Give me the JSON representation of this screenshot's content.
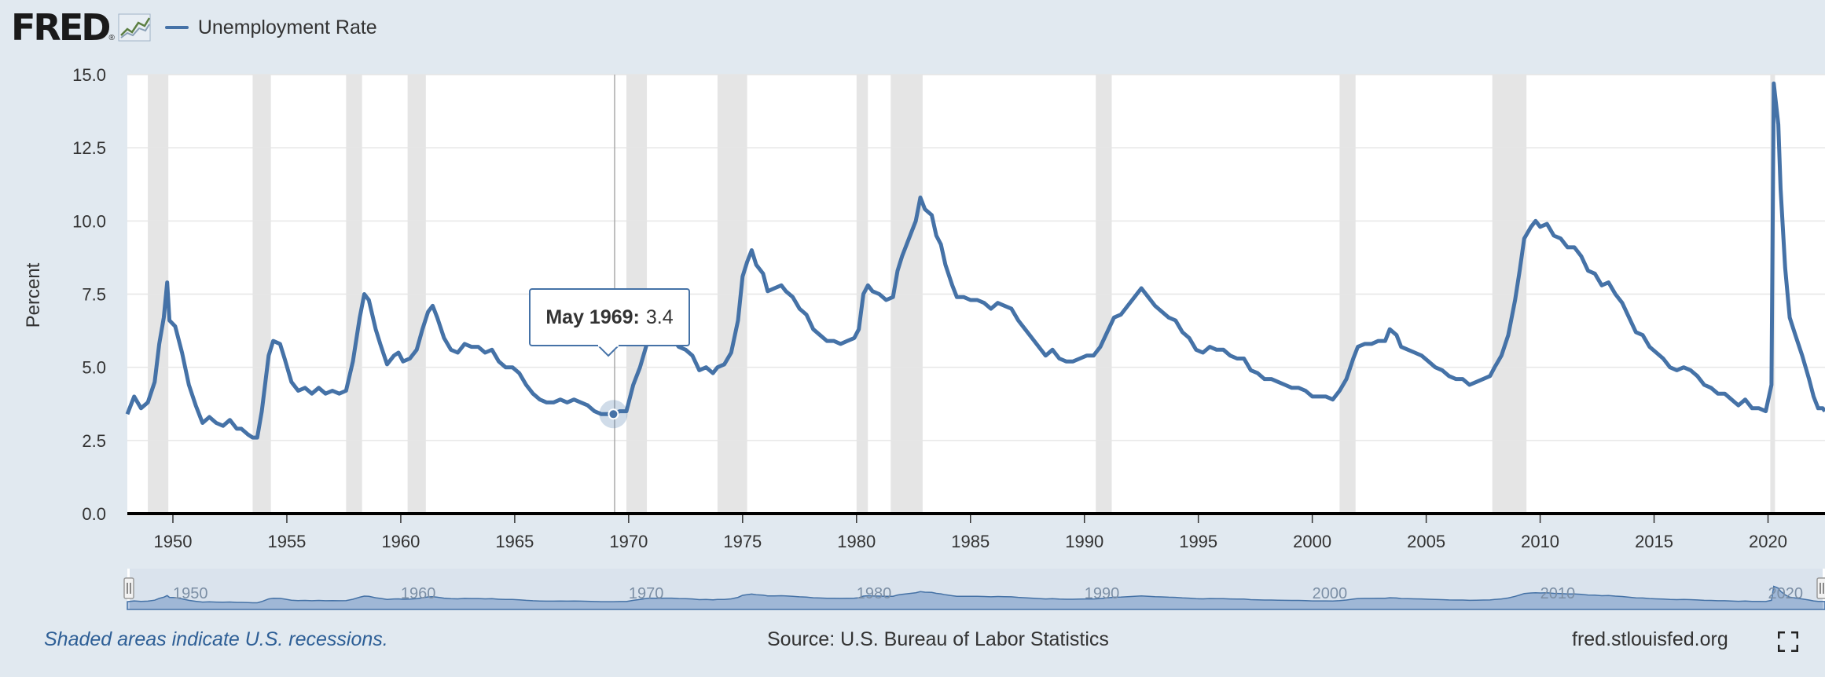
{
  "header": {
    "logo_text": "FRED",
    "logo_mark": "®",
    "legend_label": "Unemployment Rate"
  },
  "tooltip": {
    "date": "May 1969:",
    "value": "3.4"
  },
  "footer": {
    "recession_note": "Shaded areas indicate U.S. recessions.",
    "source": "Source: U.S. Bureau of Labor Statistics",
    "url": "fred.stlouisfed.org"
  },
  "colors": {
    "line": "#4572a7",
    "recession": "#e5e5e5",
    "background": "#e1e9f0",
    "navigator_fill": "#b6c9e3"
  },
  "icons": [
    "fred-logo-chart-icon",
    "fullscreen-icon",
    "navigator-handle-icon"
  ],
  "chart_data": {
    "type": "line",
    "ylabel": "Percent",
    "xlim": [
      1948,
      2022.5
    ],
    "ylim": [
      0,
      15
    ],
    "yticks": [
      0,
      2.5,
      5,
      7.5,
      10,
      12.5,
      15
    ],
    "ytick_labels": [
      "0.0",
      "2.5",
      "5.0",
      "7.5",
      "10.0",
      "12.5",
      "15.0"
    ],
    "xticks": [
      1950,
      1955,
      1960,
      1965,
      1970,
      1975,
      1980,
      1985,
      1990,
      1995,
      2000,
      2005,
      2010,
      2015,
      2020
    ],
    "grid": true,
    "legend": "top-left",
    "recessions": [
      [
        1948.9,
        1949.8
      ],
      [
        1953.5,
        1954.3
      ],
      [
        1957.6,
        1958.3
      ],
      [
        1960.3,
        1961.1
      ],
      [
        1969.9,
        1970.8
      ],
      [
        1973.9,
        1975.2
      ],
      [
        1980.0,
        1980.5
      ],
      [
        1981.5,
        1982.9
      ],
      [
        1990.5,
        1991.2
      ],
      [
        2001.2,
        2001.9
      ],
      [
        2007.9,
        2009.4
      ],
      [
        2020.1,
        2020.3
      ]
    ],
    "navigator_ticks": [
      1950,
      1960,
      1970,
      1980,
      1990,
      2000,
      2010,
      2020
    ],
    "highlight": {
      "x": 1969.33,
      "y": 3.4
    },
    "series": [
      {
        "name": "Unemployment Rate",
        "points": [
          [
            1948.0,
            3.4
          ],
          [
            1948.3,
            4.0
          ],
          [
            1948.6,
            3.6
          ],
          [
            1948.9,
            3.8
          ],
          [
            1949.2,
            4.5
          ],
          [
            1949.4,
            5.8
          ],
          [
            1949.6,
            6.7
          ],
          [
            1949.75,
            7.9
          ],
          [
            1949.85,
            6.6
          ],
          [
            1950.1,
            6.4
          ],
          [
            1950.4,
            5.5
          ],
          [
            1950.7,
            4.4
          ],
          [
            1951.0,
            3.7
          ],
          [
            1951.3,
            3.1
          ],
          [
            1951.6,
            3.3
          ],
          [
            1951.9,
            3.1
          ],
          [
            1952.2,
            3.0
          ],
          [
            1952.5,
            3.2
          ],
          [
            1952.8,
            2.9
          ],
          [
            1953.0,
            2.9
          ],
          [
            1953.3,
            2.7
          ],
          [
            1953.5,
            2.6
          ],
          [
            1953.7,
            2.6
          ],
          [
            1953.9,
            3.5
          ],
          [
            1954.2,
            5.4
          ],
          [
            1954.4,
            5.9
          ],
          [
            1954.7,
            5.8
          ],
          [
            1954.9,
            5.3
          ],
          [
            1955.2,
            4.5
          ],
          [
            1955.5,
            4.2
          ],
          [
            1955.8,
            4.3
          ],
          [
            1956.1,
            4.1
          ],
          [
            1956.4,
            4.3
          ],
          [
            1956.7,
            4.1
          ],
          [
            1957.0,
            4.2
          ],
          [
            1957.3,
            4.1
          ],
          [
            1957.6,
            4.2
          ],
          [
            1957.9,
            5.2
          ],
          [
            1958.2,
            6.7
          ],
          [
            1958.4,
            7.5
          ],
          [
            1958.6,
            7.3
          ],
          [
            1958.9,
            6.3
          ],
          [
            1959.1,
            5.8
          ],
          [
            1959.4,
            5.1
          ],
          [
            1959.7,
            5.4
          ],
          [
            1959.9,
            5.5
          ],
          [
            1960.1,
            5.2
          ],
          [
            1960.4,
            5.3
          ],
          [
            1960.7,
            5.6
          ],
          [
            1960.95,
            6.3
          ],
          [
            1961.2,
            6.9
          ],
          [
            1961.4,
            7.1
          ],
          [
            1961.6,
            6.7
          ],
          [
            1961.9,
            6.0
          ],
          [
            1962.2,
            5.6
          ],
          [
            1962.5,
            5.5
          ],
          [
            1962.8,
            5.8
          ],
          [
            1963.1,
            5.7
          ],
          [
            1963.4,
            5.7
          ],
          [
            1963.7,
            5.5
          ],
          [
            1964.0,
            5.6
          ],
          [
            1964.3,
            5.2
          ],
          [
            1964.6,
            5.0
          ],
          [
            1964.9,
            5.0
          ],
          [
            1965.2,
            4.8
          ],
          [
            1965.5,
            4.4
          ],
          [
            1965.8,
            4.1
          ],
          [
            1966.1,
            3.9
          ],
          [
            1966.4,
            3.8
          ],
          [
            1966.7,
            3.8
          ],
          [
            1967.0,
            3.9
          ],
          [
            1967.3,
            3.8
          ],
          [
            1967.6,
            3.9
          ],
          [
            1967.9,
            3.8
          ],
          [
            1968.2,
            3.7
          ],
          [
            1968.5,
            3.5
          ],
          [
            1968.8,
            3.4
          ],
          [
            1969.1,
            3.4
          ],
          [
            1969.33,
            3.4
          ],
          [
            1969.6,
            3.5
          ],
          [
            1969.9,
            3.5
          ],
          [
            1970.2,
            4.4
          ],
          [
            1970.5,
            5.0
          ],
          [
            1970.8,
            5.8
          ],
          [
            1971.0,
            6.0
          ],
          [
            1971.3,
            5.9
          ],
          [
            1971.6,
            6.0
          ],
          [
            1971.9,
            6.0
          ],
          [
            1972.2,
            5.7
          ],
          [
            1972.5,
            5.6
          ],
          [
            1972.8,
            5.4
          ],
          [
            1973.1,
            4.9
          ],
          [
            1973.4,
            5.0
          ],
          [
            1973.7,
            4.8
          ],
          [
            1973.9,
            5.0
          ],
          [
            1974.2,
            5.1
          ],
          [
            1974.5,
            5.5
          ],
          [
            1974.8,
            6.6
          ],
          [
            1975.0,
            8.1
          ],
          [
            1975.2,
            8.6
          ],
          [
            1975.4,
            9.0
          ],
          [
            1975.6,
            8.5
          ],
          [
            1975.9,
            8.2
          ],
          [
            1976.1,
            7.6
          ],
          [
            1976.4,
            7.7
          ],
          [
            1976.7,
            7.8
          ],
          [
            1976.9,
            7.6
          ],
          [
            1977.2,
            7.4
          ],
          [
            1977.5,
            7.0
          ],
          [
            1977.8,
            6.8
          ],
          [
            1978.1,
            6.3
          ],
          [
            1978.4,
            6.1
          ],
          [
            1978.7,
            5.9
          ],
          [
            1979.0,
            5.9
          ],
          [
            1979.3,
            5.8
          ],
          [
            1979.6,
            5.9
          ],
          [
            1979.9,
            6.0
          ],
          [
            1980.1,
            6.3
          ],
          [
            1980.3,
            7.5
          ],
          [
            1980.5,
            7.8
          ],
          [
            1980.7,
            7.6
          ],
          [
            1981.0,
            7.5
          ],
          [
            1981.3,
            7.3
          ],
          [
            1981.6,
            7.4
          ],
          [
            1981.8,
            8.3
          ],
          [
            1982.0,
            8.8
          ],
          [
            1982.3,
            9.4
          ],
          [
            1982.6,
            10.0
          ],
          [
            1982.8,
            10.8
          ],
          [
            1983.0,
            10.4
          ],
          [
            1983.3,
            10.2
          ],
          [
            1983.5,
            9.5
          ],
          [
            1983.7,
            9.2
          ],
          [
            1983.9,
            8.5
          ],
          [
            1984.2,
            7.8
          ],
          [
            1984.4,
            7.4
          ],
          [
            1984.7,
            7.4
          ],
          [
            1985.0,
            7.3
          ],
          [
            1985.3,
            7.3
          ],
          [
            1985.6,
            7.2
          ],
          [
            1985.9,
            7.0
          ],
          [
            1986.2,
            7.2
          ],
          [
            1986.5,
            7.1
          ],
          [
            1986.8,
            7.0
          ],
          [
            1987.1,
            6.6
          ],
          [
            1987.4,
            6.3
          ],
          [
            1987.7,
            6.0
          ],
          [
            1988.0,
            5.7
          ],
          [
            1988.3,
            5.4
          ],
          [
            1988.6,
            5.6
          ],
          [
            1988.9,
            5.3
          ],
          [
            1989.2,
            5.2
          ],
          [
            1989.5,
            5.2
          ],
          [
            1989.8,
            5.3
          ],
          [
            1990.1,
            5.4
          ],
          [
            1990.4,
            5.4
          ],
          [
            1990.7,
            5.7
          ],
          [
            1991.0,
            6.2
          ],
          [
            1991.3,
            6.7
          ],
          [
            1991.6,
            6.8
          ],
          [
            1991.9,
            7.1
          ],
          [
            1992.2,
            7.4
          ],
          [
            1992.5,
            7.7
          ],
          [
            1992.8,
            7.4
          ],
          [
            1993.1,
            7.1
          ],
          [
            1993.4,
            6.9
          ],
          [
            1993.7,
            6.7
          ],
          [
            1994.0,
            6.6
          ],
          [
            1994.3,
            6.2
          ],
          [
            1994.6,
            6.0
          ],
          [
            1994.9,
            5.6
          ],
          [
            1995.2,
            5.5
          ],
          [
            1995.5,
            5.7
          ],
          [
            1995.8,
            5.6
          ],
          [
            1996.1,
            5.6
          ],
          [
            1996.4,
            5.4
          ],
          [
            1996.7,
            5.3
          ],
          [
            1997.0,
            5.3
          ],
          [
            1997.3,
            4.9
          ],
          [
            1997.6,
            4.8
          ],
          [
            1997.9,
            4.6
          ],
          [
            1998.2,
            4.6
          ],
          [
            1998.5,
            4.5
          ],
          [
            1998.8,
            4.4
          ],
          [
            1999.1,
            4.3
          ],
          [
            1999.4,
            4.3
          ],
          [
            1999.7,
            4.2
          ],
          [
            2000.0,
            4.0
          ],
          [
            2000.3,
            4.0
          ],
          [
            2000.6,
            4.0
          ],
          [
            2000.9,
            3.9
          ],
          [
            2001.2,
            4.2
          ],
          [
            2001.5,
            4.6
          ],
          [
            2001.8,
            5.3
          ],
          [
            2002.0,
            5.7
          ],
          [
            2002.3,
            5.8
          ],
          [
            2002.6,
            5.8
          ],
          [
            2002.9,
            5.9
          ],
          [
            2003.2,
            5.9
          ],
          [
            2003.4,
            6.3
          ],
          [
            2003.7,
            6.1
          ],
          [
            2003.9,
            5.7
          ],
          [
            2004.2,
            5.6
          ],
          [
            2004.5,
            5.5
          ],
          [
            2004.8,
            5.4
          ],
          [
            2005.1,
            5.2
          ],
          [
            2005.4,
            5.0
          ],
          [
            2005.7,
            4.9
          ],
          [
            2006.0,
            4.7
          ],
          [
            2006.3,
            4.6
          ],
          [
            2006.6,
            4.6
          ],
          [
            2006.9,
            4.4
          ],
          [
            2007.2,
            4.5
          ],
          [
            2007.5,
            4.6
          ],
          [
            2007.8,
            4.7
          ],
          [
            2008.0,
            5.0
          ],
          [
            2008.3,
            5.4
          ],
          [
            2008.6,
            6.1
          ],
          [
            2008.9,
            7.3
          ],
          [
            2009.1,
            8.3
          ],
          [
            2009.3,
            9.4
          ],
          [
            2009.6,
            9.8
          ],
          [
            2009.8,
            10.0
          ],
          [
            2010.0,
            9.8
          ],
          [
            2010.3,
            9.9
          ],
          [
            2010.6,
            9.5
          ],
          [
            2010.9,
            9.4
          ],
          [
            2011.2,
            9.1
          ],
          [
            2011.5,
            9.1
          ],
          [
            2011.8,
            8.8
          ],
          [
            2012.1,
            8.3
          ],
          [
            2012.4,
            8.2
          ],
          [
            2012.7,
            7.8
          ],
          [
            2013.0,
            7.9
          ],
          [
            2013.3,
            7.5
          ],
          [
            2013.6,
            7.2
          ],
          [
            2013.9,
            6.7
          ],
          [
            2014.2,
            6.2
          ],
          [
            2014.5,
            6.1
          ],
          [
            2014.8,
            5.7
          ],
          [
            2015.1,
            5.5
          ],
          [
            2015.4,
            5.3
          ],
          [
            2015.7,
            5.0
          ],
          [
            2016.0,
            4.9
          ],
          [
            2016.3,
            5.0
          ],
          [
            2016.6,
            4.9
          ],
          [
            2016.9,
            4.7
          ],
          [
            2017.2,
            4.4
          ],
          [
            2017.5,
            4.3
          ],
          [
            2017.8,
            4.1
          ],
          [
            2018.1,
            4.1
          ],
          [
            2018.4,
            3.9
          ],
          [
            2018.7,
            3.7
          ],
          [
            2019.0,
            3.9
          ],
          [
            2019.3,
            3.6
          ],
          [
            2019.6,
            3.6
          ],
          [
            2019.9,
            3.5
          ],
          [
            2020.15,
            4.4
          ],
          [
            2020.25,
            14.7
          ],
          [
            2020.45,
            13.3
          ],
          [
            2020.55,
            11.1
          ],
          [
            2020.75,
            8.4
          ],
          [
            2020.95,
            6.7
          ],
          [
            2021.2,
            6.1
          ],
          [
            2021.5,
            5.4
          ],
          [
            2021.8,
            4.6
          ],
          [
            2022.0,
            4.0
          ],
          [
            2022.2,
            3.6
          ],
          [
            2022.4,
            3.6
          ],
          [
            2022.5,
            3.5
          ]
        ]
      }
    ]
  }
}
